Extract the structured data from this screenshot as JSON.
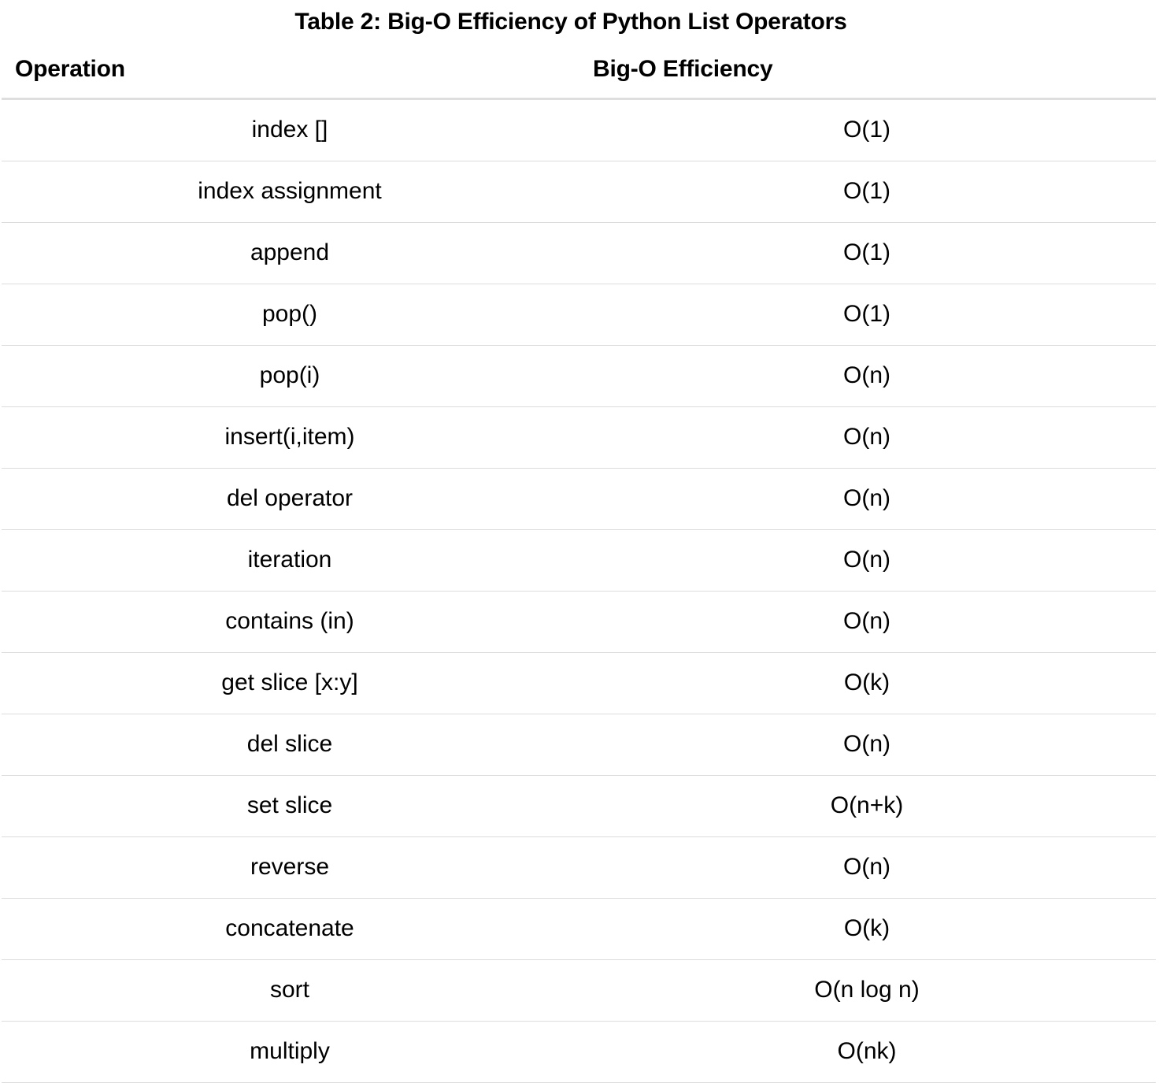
{
  "caption": "Table 2: Big-O Efficiency of Python List Operators",
  "table": {
    "headers": [
      "Operation",
      "Big-O Efficiency"
    ],
    "rows": [
      [
        "index []",
        "O(1)"
      ],
      [
        "index assignment",
        "O(1)"
      ],
      [
        "append",
        "O(1)"
      ],
      [
        "pop()",
        "O(1)"
      ],
      [
        "pop(i)",
        "O(n)"
      ],
      [
        "insert(i,item)",
        "O(n)"
      ],
      [
        "del operator",
        "O(n)"
      ],
      [
        "iteration",
        "O(n)"
      ],
      [
        "contains (in)",
        "O(n)"
      ],
      [
        "get slice [x:y]",
        "O(k)"
      ],
      [
        "del slice",
        "O(n)"
      ],
      [
        "set slice",
        "O(n+k)"
      ],
      [
        "reverse",
        "O(n)"
      ],
      [
        "concatenate",
        "O(k)"
      ],
      [
        "sort",
        "O(n log n)"
      ],
      [
        "multiply",
        "O(nk)"
      ]
    ]
  }
}
